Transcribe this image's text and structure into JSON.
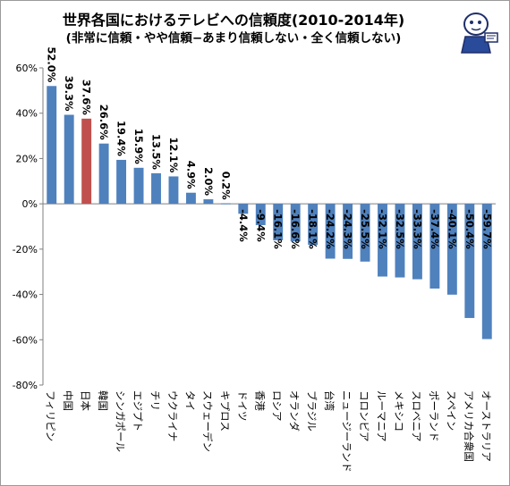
{
  "chart_data": {
    "type": "bar",
    "title": "世界各国におけるテレビへの信頼度(2010-2014年)",
    "subtitle": "(非常に信頼・やや信頼−あまり信頼しない・全く信頼しない)",
    "xlabel": "",
    "ylabel": "",
    "ylim": [
      -80,
      60
    ],
    "yticks": [
      "60%",
      "40%",
      "20%",
      "0%",
      "-20%",
      "-40%",
      "-60%",
      "-80%"
    ],
    "grid": false,
    "categories": [
      "フィリピン",
      "中国",
      "日本",
      "韓国",
      "シンガポール",
      "エジプト",
      "チリ",
      "ウクライナ",
      "タイ",
      "スウェーデン",
      "キプロス",
      "ドイツ",
      "香港",
      "ロシア",
      "オランダ",
      "ブラジル",
      "台湾",
      "ニュージーランド",
      "コロンビア",
      "ルーマニア",
      "メキシコ",
      "スロベニア",
      "ポーランド",
      "スペイン",
      "アメリカ合衆国",
      "オーストラリア"
    ],
    "values": [
      52.0,
      39.3,
      37.6,
      26.6,
      19.4,
      15.9,
      13.5,
      12.1,
      4.9,
      2.0,
      0.2,
      -4.4,
      -9.4,
      -16.1,
      -16.6,
      -18.1,
      -24.2,
      -24.3,
      -25.5,
      -32.1,
      -32.5,
      -33.3,
      -37.4,
      -40.1,
      -50.4,
      -59.7
    ],
    "labels": [
      "52.0%",
      "39.3%",
      "37.6%",
      "26.6%",
      "19.4%",
      "15.9%",
      "13.5%",
      "12.1%",
      "4.9%",
      "2.0%",
      "0.2%",
      "-4.4%",
      "-9.4%",
      "-16.1%",
      "-16.6%",
      "-18.1%",
      "-24.2%",
      "-24.3%",
      "-25.5%",
      "-32.1%",
      "-32.5%",
      "-33.3%",
      "-37.4%",
      "-40.1%",
      "-50.4%",
      "-59.7%"
    ],
    "highlight_index": 2,
    "colors": {
      "bar": "#4f81bd",
      "highlight": "#c0504d",
      "axis": "#7f7f7f"
    }
  }
}
